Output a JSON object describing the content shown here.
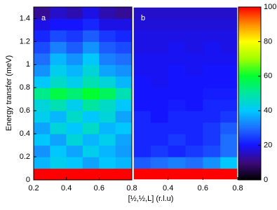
{
  "chart_data": {
    "type": "heatmap",
    "ylabel": "Energy transfer (meV)",
    "xlabel": "[½,½,L] (r.l.u)",
    "ylim": [
      0,
      1.5
    ],
    "yticks": [
      0,
      0.2,
      0.4,
      0.6,
      0.8,
      1.0,
      1.2,
      1.4
    ],
    "colormap": [
      "#000000",
      "#3c0a7c",
      "#1414ff",
      "#1e6eff",
      "#00c8ff",
      "#00e6a0",
      "#00ff30",
      "#a0ff00",
      "#ffff00",
      "#ff8c00",
      "#ff0000"
    ],
    "clim": [
      0,
      100
    ],
    "cticks": [
      0,
      20,
      40,
      60,
      80,
      100
    ],
    "panels": [
      {
        "label": "a",
        "xlim": [
          0.2,
          0.8
        ],
        "xticks": [
          0.2,
          0.4,
          0.6,
          0.8
        ],
        "z": [
          [
            100,
            100,
            100,
            100,
            100,
            100
          ],
          [
            38,
            42,
            40,
            36,
            40,
            38
          ],
          [
            34,
            40,
            36,
            42,
            38,
            35
          ],
          [
            40,
            36,
            44,
            38,
            42,
            36
          ],
          [
            36,
            44,
            40,
            46,
            38,
            40
          ],
          [
            42,
            38,
            46,
            40,
            44,
            36
          ],
          [
            44,
            48,
            42,
            50,
            46,
            40
          ],
          [
            52,
            58,
            54,
            60,
            56,
            48
          ],
          [
            40,
            46,
            42,
            48,
            44,
            38
          ],
          [
            34,
            42,
            38,
            44,
            36,
            34
          ],
          [
            30,
            38,
            34,
            40,
            32,
            30
          ],
          [
            26,
            32,
            28,
            34,
            28,
            26
          ],
          [
            22,
            26,
            24,
            28,
            24,
            22
          ],
          [
            18,
            20,
            20,
            22,
            18,
            18
          ],
          [
            12,
            16,
            14,
            18,
            14,
            12
          ]
        ]
      },
      {
        "label": "b",
        "xlim": [
          0.2,
          0.8
        ],
        "xticks": [
          0.4,
          0.6,
          0.8
        ],
        "z": [
          [
            100,
            100,
            100,
            100,
            100,
            100
          ],
          [
            28,
            30,
            32,
            30,
            34,
            40
          ],
          [
            22,
            24,
            22,
            24,
            26,
            30
          ],
          [
            22,
            22,
            24,
            22,
            24,
            30
          ],
          [
            22,
            22,
            22,
            22,
            24,
            28
          ],
          [
            22,
            20,
            22,
            22,
            22,
            24
          ],
          [
            20,
            20,
            21,
            20,
            22,
            22
          ],
          [
            20,
            20,
            20,
            20,
            21,
            21
          ],
          [
            20,
            19,
            20,
            20,
            20,
            20
          ],
          [
            19,
            19,
            20,
            19,
            20,
            20
          ],
          [
            19,
            19,
            19,
            19,
            19,
            19
          ],
          [
            18,
            18,
            19,
            18,
            19,
            18
          ],
          [
            18,
            18,
            18,
            18,
            18,
            18
          ],
          [
            17,
            17,
            17,
            17,
            17,
            17
          ],
          [
            16,
            16,
            16,
            16,
            16,
            16
          ]
        ]
      }
    ]
  }
}
